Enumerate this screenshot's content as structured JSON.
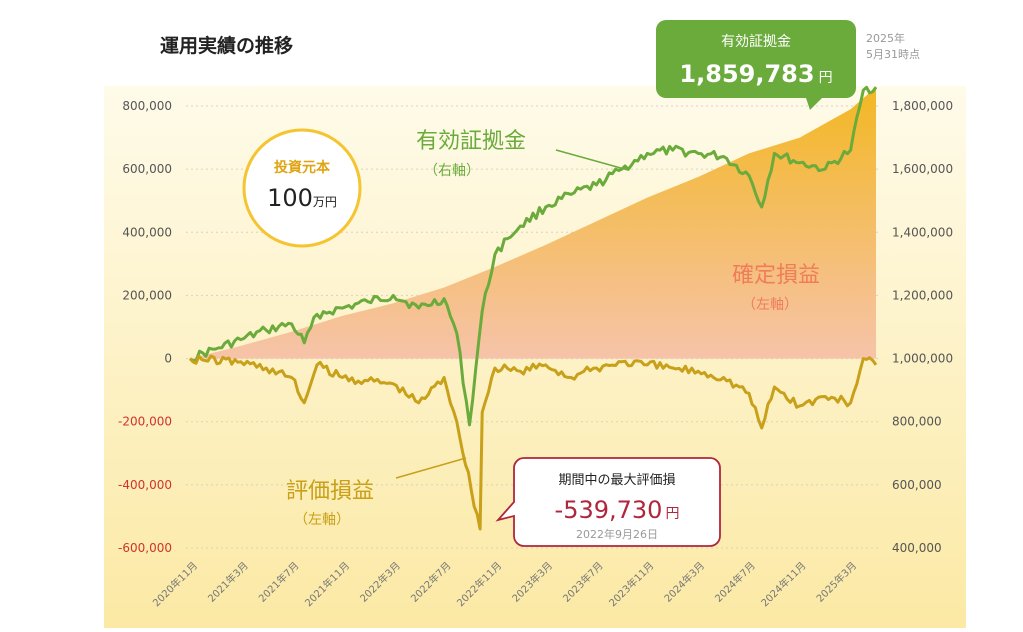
{
  "chart_data": {
    "type": "line",
    "title": "運用実績の推移",
    "x_tick_labels": [
      "2020年11月",
      "2021年3月",
      "2021年7月",
      "2021年11月",
      "2022年3月",
      "2022年7月",
      "2022年11月",
      "2023年3月",
      "2023年7月",
      "2023年11月",
      "2024年3月",
      "2024年7月",
      "2024年11月",
      "2025年3月"
    ],
    "x_range": [
      "2020-11",
      "2025-05"
    ],
    "left_axis": {
      "ylim": [
        -600000,
        800000
      ],
      "ticks": [
        "800,000",
        "600,000",
        "400,000",
        "200,000",
        "0",
        "-200,000",
        "-400,000",
        "-600,000"
      ]
    },
    "right_axis": {
      "ylim": [
        400000,
        1800000
      ],
      "ticks": [
        "1,800,000",
        "1,600,000",
        "1,400,000",
        "1,200,000",
        "1,000,000",
        "800,000",
        "600,000",
        "400,000"
      ]
    },
    "grid": true,
    "series": [
      {
        "name": "有効証拠金",
        "axis": "right",
        "color": "#6aab3c",
        "x": [
          "2020-11",
          "2021-01",
          "2021-03",
          "2021-05",
          "2021-07",
          "2021-08",
          "2021-09",
          "2021-11",
          "2022-01",
          "2022-03",
          "2022-05",
          "2022-07",
          "2022-08",
          "2022-09",
          "2022-10",
          "2022-11",
          "2022-12",
          "2023-01",
          "2023-03",
          "2023-05",
          "2023-07",
          "2023-09",
          "2023-11",
          "2024-01",
          "2024-03",
          "2024-05",
          "2024-07",
          "2024-08",
          "2024-09",
          "2024-11",
          "2025-01",
          "2025-03",
          "2025-04",
          "2025-05"
        ],
        "y": [
          1000000,
          1030000,
          1060000,
          1090000,
          1110000,
          1050000,
          1140000,
          1160000,
          1180000,
          1200000,
          1160000,
          1190000,
          1080000,
          790000,
          1150000,
          1330000,
          1380000,
          1420000,
          1480000,
          1520000,
          1550000,
          1600000,
          1650000,
          1660000,
          1650000,
          1640000,
          1580000,
          1480000,
          1650000,
          1620000,
          1600000,
          1660000,
          1850000,
          1859783
        ]
      },
      {
        "name": "確定損益",
        "axis": "left",
        "color": "#f2b418",
        "x": [
          "2020-11",
          "2021-03",
          "2021-07",
          "2021-11",
          "2022-03",
          "2022-07",
          "2022-11",
          "2023-03",
          "2023-07",
          "2023-11",
          "2024-03",
          "2024-07",
          "2024-11",
          "2025-03",
          "2025-05"
        ],
        "y": [
          0,
          40000,
          85000,
          135000,
          175000,
          225000,
          290000,
          360000,
          435000,
          510000,
          575000,
          650000,
          700000,
          790000,
          860000
        ]
      },
      {
        "name": "評価損益",
        "axis": "left",
        "color": "#c8a019",
        "x": [
          "2020-11",
          "2021-03",
          "2021-05",
          "2021-07",
          "2021-08",
          "2021-09",
          "2021-11",
          "2022-01",
          "2022-03",
          "2022-05",
          "2022-07",
          "2022-08",
          "2022-09-26",
          "2022-10",
          "2022-11",
          "2023-01",
          "2023-03",
          "2023-05",
          "2023-07",
          "2023-09",
          "2023-11",
          "2024-01",
          "2024-03",
          "2024-05",
          "2024-07",
          "2024-08",
          "2024-09",
          "2024-11",
          "2025-01",
          "2025-03",
          "2025-04",
          "2025-05"
        ],
        "y": [
          0,
          -10000,
          -30000,
          -60000,
          -140000,
          -20000,
          -60000,
          -70000,
          -80000,
          -140000,
          -60000,
          -200000,
          -539730,
          -170000,
          -30000,
          -40000,
          -20000,
          -60000,
          -30000,
          -10000,
          -20000,
          -30000,
          -40000,
          -60000,
          -110000,
          -220000,
          -90000,
          -150000,
          -120000,
          -140000,
          0,
          -20000
        ]
      }
    ],
    "annotations": {
      "principal": {
        "label": "投資元本",
        "value": "100",
        "unit": "万円"
      },
      "equity_callout": {
        "label": "有効証拠金",
        "value": "1,859,783",
        "unit": "円",
        "date_line1": "2025年",
        "date_line2": "5月31時点"
      },
      "max_loss_callout": {
        "label": "期間中の最大評価損",
        "value": "-539,730",
        "unit": "円",
        "date": "2022年9月26日"
      },
      "series_labels": {
        "equity": "有効証拠金",
        "equity_axis": "（右軸）",
        "realized": "確定損益",
        "realized_axis": "（左軸）",
        "unrealized": "評価損益",
        "unrealized_axis": "（左軸）"
      }
    },
    "colors": {
      "equity": "#6aab3c",
      "realized_top": "#f2b418",
      "realized_bottom": "#f6c3a8",
      "unrealized": "#c8a019",
      "negative_tick": "#d0342c",
      "callout_border": "#b0263d",
      "callout_value": "#b0263d",
      "principal_ring": "#f4c431",
      "principal_label": "#e0a410",
      "realized_label": "#ef7d5a",
      "plot_bg_top": "#fffbe8",
      "plot_bg_bottom": "#fbeaa6"
    }
  }
}
